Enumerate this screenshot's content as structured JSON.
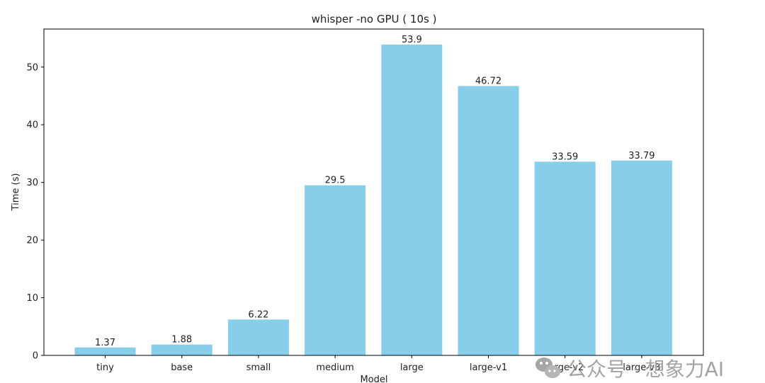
{
  "chart_data": {
    "type": "bar",
    "title": "whisper -no GPU ( 10s )",
    "xlabel": "Model",
    "ylabel": "Time (s)",
    "categories": [
      "tiny",
      "base",
      "small",
      "medium",
      "large",
      "large-v1",
      "large-v2",
      "large-v3"
    ],
    "values": [
      1.37,
      1.88,
      6.22,
      29.5,
      53.9,
      46.72,
      33.59,
      33.79
    ],
    "data_labels": [
      "1.37",
      "1.88",
      "6.22",
      "29.5",
      "53.9",
      "46.72",
      "33.59",
      "33.79"
    ],
    "ylim": [
      0,
      56.6
    ],
    "yticks": [
      0,
      10,
      20,
      30,
      40,
      50
    ],
    "ytick_labels": [
      "0",
      "10",
      "20",
      "30",
      "40",
      "50"
    ],
    "grid": false,
    "bar_color": "#87ceeb"
  },
  "watermark": {
    "text": "公众号 · 想象力AI",
    "icon": "wechat-icon"
  }
}
